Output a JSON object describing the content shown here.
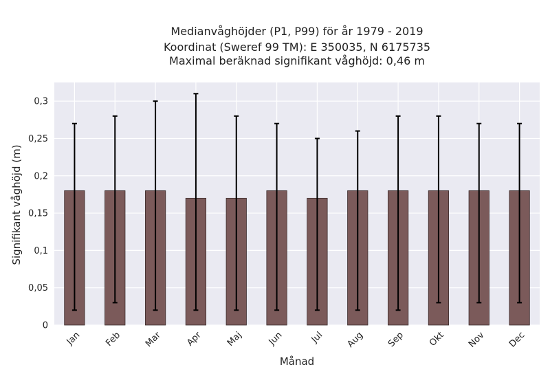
{
  "chart_data": {
    "type": "bar",
    "title_lines": [
      "Medianvåghöjder (P1, P99) för år 1979 - 2019",
      "Koordinat (Sweref 99 TM): E 350035, N 6175735",
      "Maximal beräknad signifikant våghöjd: 0,46 m"
    ],
    "xlabel": "Månad",
    "ylabel": "Signifikant våghöjd (m)",
    "categories": [
      "Jan",
      "Feb",
      "Mar",
      "Apr",
      "Maj",
      "Jun",
      "Jul",
      "Aug",
      "Sep",
      "Okt",
      "Nov",
      "Dec"
    ],
    "values": [
      0.18,
      0.18,
      0.18,
      0.17,
      0.17,
      0.18,
      0.17,
      0.18,
      0.18,
      0.18,
      0.18,
      0.18
    ],
    "error_low": [
      0.02,
      0.03,
      0.02,
      0.02,
      0.02,
      0.02,
      0.02,
      0.02,
      0.02,
      0.03,
      0.03,
      0.03
    ],
    "error_high": [
      0.27,
      0.28,
      0.3,
      0.31,
      0.28,
      0.27,
      0.25,
      0.26,
      0.28,
      0.28,
      0.27,
      0.27
    ],
    "ylim": [
      0,
      0.325
    ],
    "yticks": [
      0,
      0.05,
      0.1,
      0.15,
      0.2,
      0.25,
      0.3
    ],
    "ytick_labels": [
      "0",
      "0,05",
      "0,1",
      "0,15",
      "0,2",
      "0,25",
      "0,3"
    ],
    "grid": true,
    "colors": {
      "bar": "#7b5a5a",
      "bar_edge": "#3a2a2a",
      "error": "#000000",
      "plot_bg": "#eaeaf2",
      "grid": "#ffffff"
    }
  }
}
